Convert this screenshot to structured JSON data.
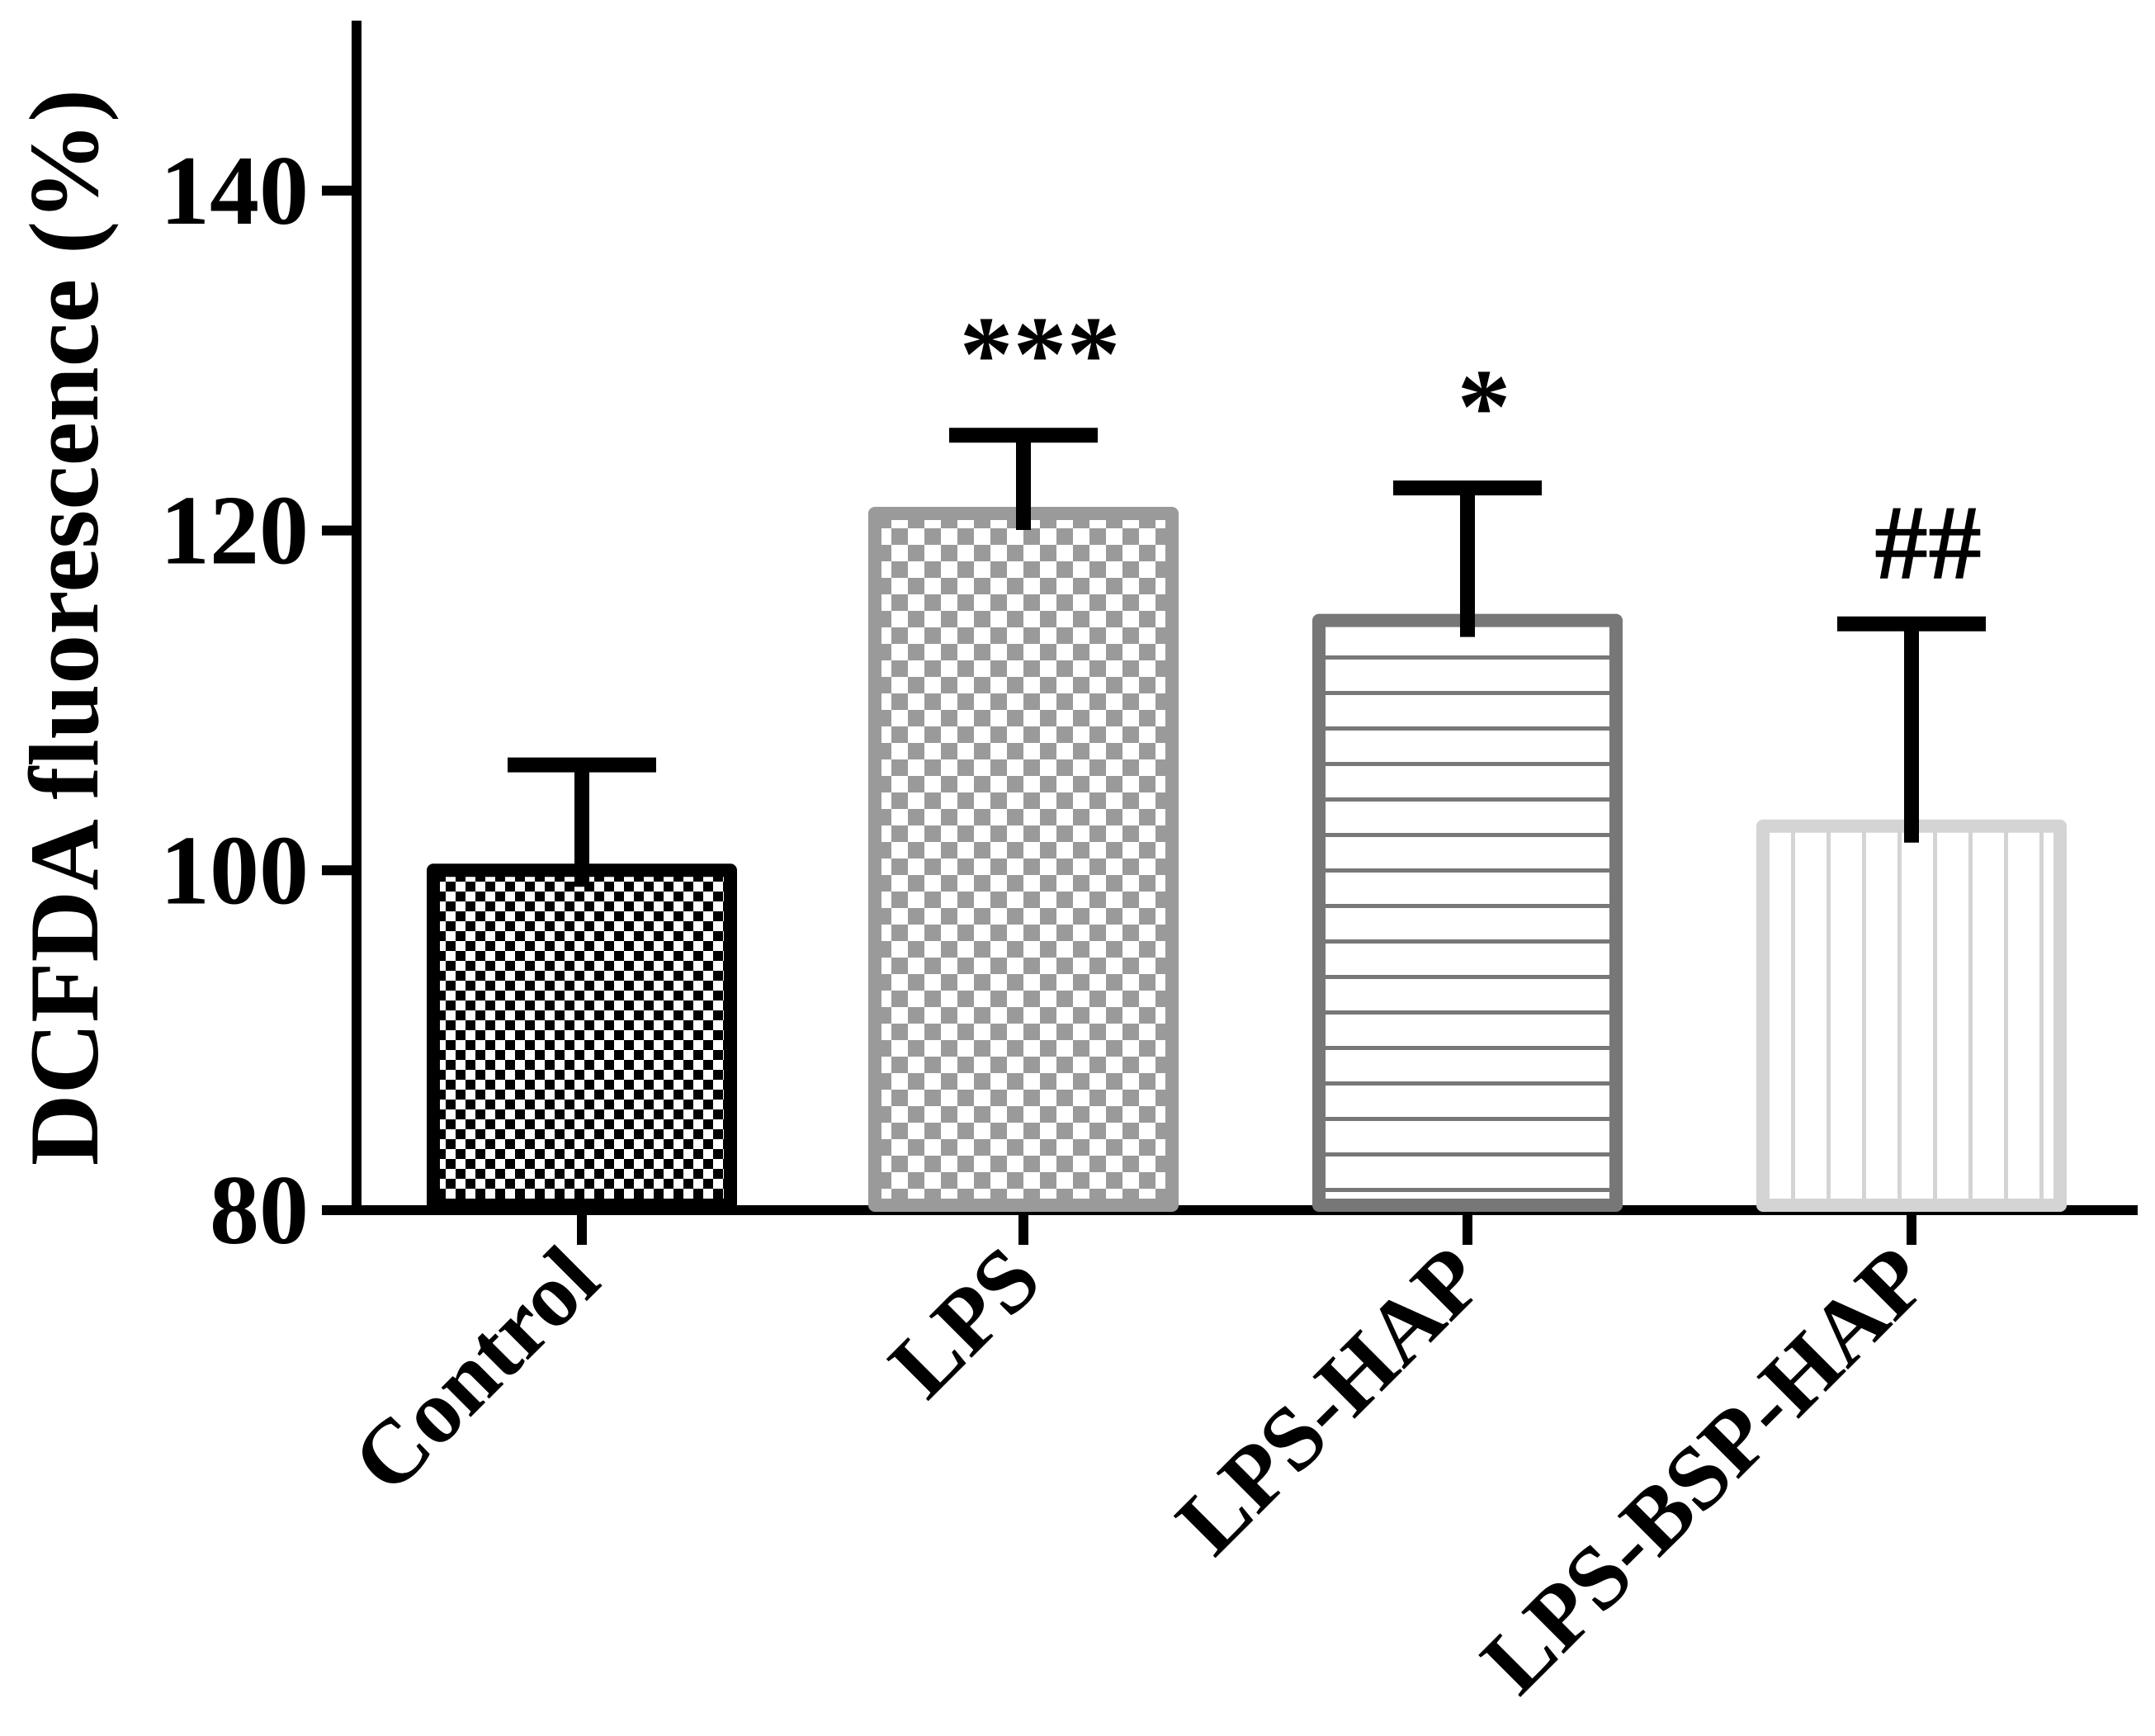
{
  "chart_data": {
    "type": "bar",
    "title": "",
    "xlabel": "",
    "ylabel": "DCFDA fluorescence (%)",
    "ylim": [
      80,
      150
    ],
    "yticks": [
      80,
      100,
      120,
      140
    ],
    "categories": [
      "Control",
      "LPS",
      "LPS-HAP",
      "LPS-BSP-HAP"
    ],
    "values": [
      100,
      121,
      114.7,
      102.6
    ],
    "error_upper": [
      106.2,
      125.6,
      122.5,
      114.5
    ],
    "significance": [
      "",
      "***",
      "*",
      "##"
    ],
    "bar_styles": [
      {
        "pattern": "fine-checker",
        "edge": "#000000",
        "fill": "#000000"
      },
      {
        "pattern": "checker",
        "edge": "#9a9a9a",
        "fill": "#9a9a9a"
      },
      {
        "pattern": "horizontal-lines",
        "edge": "#777777",
        "fill": "#777777"
      },
      {
        "pattern": "vertical-lines",
        "edge": "#d4d4d4",
        "fill": "#d4d4d4"
      }
    ],
    "grid": false,
    "legend": "none"
  }
}
